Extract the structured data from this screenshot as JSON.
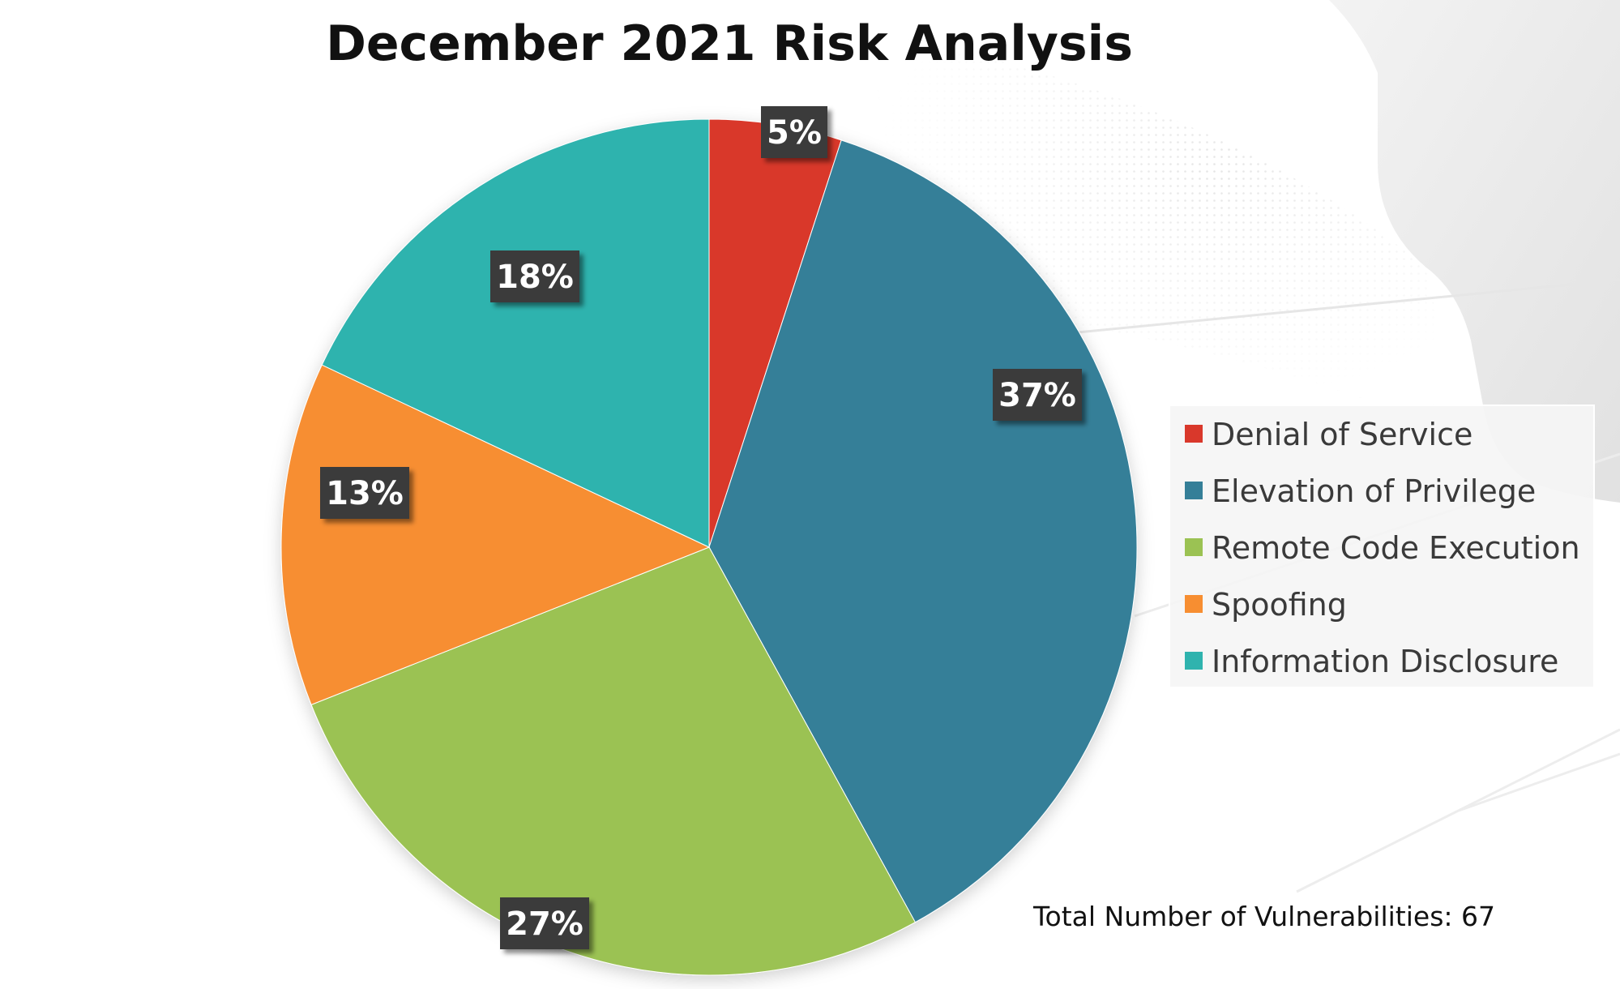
{
  "chart_data": {
    "type": "pie",
    "title": "December 2021 Risk Analysis",
    "slices": [
      {
        "label": "Denial of Service",
        "value": 5,
        "display": "5%",
        "color": "#D9382B"
      },
      {
        "label": "Elevation of Privilege",
        "value": 37,
        "display": "37%",
        "color": "#357F98"
      },
      {
        "label": "Remote Code Execution",
        "value": 27,
        "display": "27%",
        "color": "#9BC253"
      },
      {
        "label": "Spoofing",
        "value": 13,
        "display": "13%",
        "color": "#F78E31"
      },
      {
        "label": "Information Disclosure",
        "value": 18,
        "display": "18%",
        "color": "#2FB3AE"
      }
    ],
    "legend_position": "right",
    "total_note": "Total Number of Vulnerabilities: 67",
    "label_box_color": "#3b3b3b",
    "label_text_color": "#ffffff"
  }
}
